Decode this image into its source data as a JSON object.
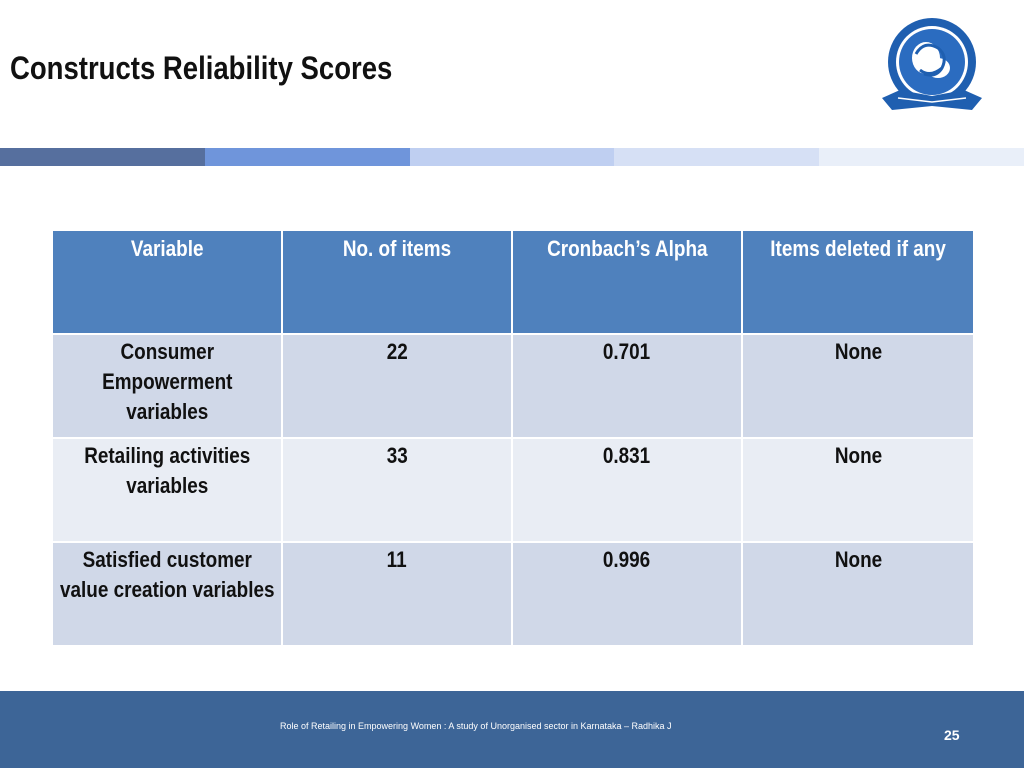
{
  "slide": {
    "title": "Constructs Reliability Scores",
    "page_number": "25",
    "footer_text": "Role of Retailing in Empowering Women : A study of Unorganised sector in Karnataka – Radhika J"
  },
  "stripe_colors": [
    "#566f9e",
    "#6f95db",
    "#bfcff1",
    "#d6e0f5",
    "#e9eff9"
  ],
  "table": {
    "headers": [
      "Variable",
      "No. of items",
      "Cronbach’s Alpha",
      "Items deleted if any"
    ],
    "rows": [
      {
        "variable": "Consumer Empowerment variables",
        "items": "22",
        "alpha": "0.701",
        "deleted": "None"
      },
      {
        "variable": "Retailing activities variables",
        "items": "33",
        "alpha": "0.831",
        "deleted": "None"
      },
      {
        "variable": "Satisfied customer value creation variables",
        "items": "11",
        "alpha": "0.996",
        "deleted": "None"
      }
    ]
  },
  "colors": {
    "header_bg": "#4f81bd",
    "row_dark": "#d0d8e8",
    "row_light": "#e9edf4",
    "footer_bg": "#3d6597",
    "logo_blue": "#1f5fb0"
  },
  "logo": {
    "icon": "university-seal-icon"
  }
}
